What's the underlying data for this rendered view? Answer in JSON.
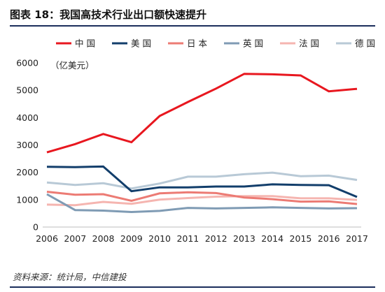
{
  "header": {
    "title": "图表  18：我国高技术行业出口额快速提升"
  },
  "footer": {
    "source": "资料来源：统计局，中信建投"
  },
  "chart_data": {
    "type": "line",
    "title": "",
    "xlabel": "",
    "ylabel": "（亿美元）",
    "x": [
      "2006",
      "2007",
      "2008",
      "2009",
      "2010",
      "2011",
      "2012",
      "2013",
      "2014",
      "2015",
      "2016",
      "2017"
    ],
    "ylim": [
      0,
      6000
    ],
    "yticks": [
      0,
      1000,
      2000,
      3000,
      4000,
      5000,
      6000
    ],
    "grid": false,
    "legend_position": "top",
    "series": [
      {
        "name": "中 国",
        "color": "#e8171f",
        "values": [
          2730,
          3030,
          3400,
          3100,
          4060,
          4570,
          5060,
          5600,
          5580,
          5540,
          4960,
          5050
        ]
      },
      {
        "name": "美 国",
        "color": "#123e6b",
        "values": [
          2200,
          2190,
          2210,
          1310,
          1450,
          1450,
          1480,
          1480,
          1560,
          1540,
          1530,
          1100
        ]
      },
      {
        "name": "日 本",
        "color": "#ec7b74",
        "values": [
          1290,
          1180,
          1200,
          960,
          1230,
          1270,
          1240,
          1080,
          1020,
          930,
          940,
          840
        ]
      },
      {
        "name": "英 国",
        "color": "#7f9bb4",
        "values": [
          1200,
          620,
          600,
          550,
          590,
          700,
          680,
          700,
          720,
          700,
          680,
          690
        ]
      },
      {
        "name": "法 国",
        "color": "#f5b5b0",
        "values": [
          820,
          800,
          920,
          850,
          1000,
          1060,
          1110,
          1130,
          1130,
          1050,
          1050,
          990
        ]
      },
      {
        "name": "德 国",
        "color": "#b8c9d6",
        "values": [
          1630,
          1540,
          1600,
          1410,
          1590,
          1840,
          1840,
          1930,
          1990,
          1860,
          1880,
          1720
        ]
      }
    ]
  }
}
